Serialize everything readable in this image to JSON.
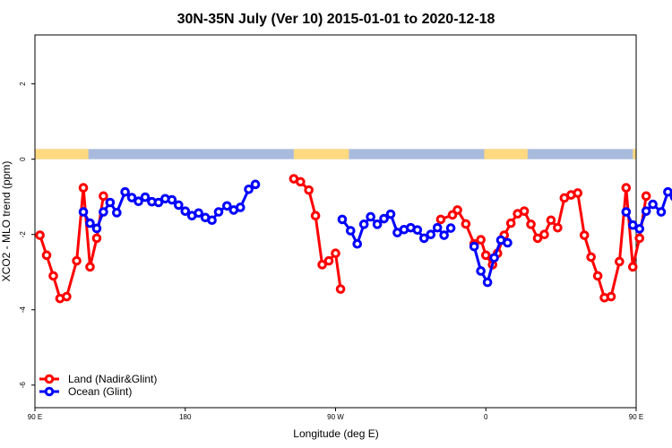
{
  "chart_data": {
    "type": "line",
    "title": "30N-35N July (Ver 10)   2015-01-01 to 2020-12-18",
    "xlabel": "Longitude (deg E)",
    "ylabel": "XCO2 - MLO trend (ppm)",
    "xlim": [
      90,
      450
    ],
    "ylim": [
      -6.6,
      3.3
    ],
    "x_ticks": [
      {
        "value": 90,
        "label": "90 E"
      },
      {
        "value": 180,
        "label": "180"
      },
      {
        "value": 270,
        "label": "90 W"
      },
      {
        "value": 360,
        "label": "0"
      },
      {
        "value": 450,
        "label": "90 E"
      },
      {
        "value": 540,
        "label": "180"
      }
    ],
    "y_ticks": [
      {
        "value": 2,
        "label": "2"
      },
      {
        "value": 0,
        "label": "0"
      },
      {
        "value": -2,
        "label": "-2"
      },
      {
        "value": -4,
        "label": "-4"
      },
      {
        "value": -6,
        "label": "-6"
      }
    ],
    "legend_position": "bottom-left",
    "mask_band": {
      "y_range": [
        0,
        0.27
      ],
      "land_color": "#FFD980",
      "ocean_color": "#A9BBDD",
      "land_segments": [
        [
          90,
          122
        ],
        [
          245,
          278
        ],
        [
          359,
          385
        ],
        [
          448,
          481
        ],
        [
          524,
          540
        ]
      ]
    },
    "series": [
      {
        "name": "Land (Nadir&Glint)",
        "color": "#FF0000",
        "segments": [
          [
            [
              93,
              -2.02
            ],
            [
              97,
              -2.55
            ],
            [
              101,
              -3.1
            ],
            [
              105,
              -3.7
            ],
            [
              109,
              -3.65
            ],
            [
              115,
              -2.7
            ],
            [
              119,
              -0.76
            ],
            [
              123,
              -2.86
            ],
            [
              127,
              -2.1
            ],
            [
              131,
              -0.98
            ]
          ],
          [
            [
              245,
              -0.52
            ],
            [
              249,
              -0.6
            ],
            [
              254,
              -0.82
            ],
            [
              258,
              -1.5
            ],
            [
              262,
              -2.8
            ],
            [
              266,
              -2.7
            ],
            [
              270,
              -2.5
            ],
            [
              273,
              -3.45
            ]
          ],
          [
            [
              333,
              -1.6
            ],
            [
              340,
              -1.48
            ],
            [
              343,
              -1.35
            ],
            [
              348,
              -1.72
            ],
            [
              353,
              -2.25
            ],
            [
              357,
              -2.14
            ],
            [
              360,
              -2.55
            ],
            [
              364,
              -2.8
            ],
            [
              367,
              -2.5
            ],
            [
              371,
              -2.02
            ],
            [
              375,
              -1.7
            ],
            [
              379,
              -1.45
            ],
            [
              383,
              -1.38
            ],
            [
              387,
              -1.73
            ],
            [
              391,
              -2.1
            ],
            [
              395,
              -2.0
            ],
            [
              399,
              -1.62
            ],
            [
              403,
              -1.82
            ],
            [
              407,
              -1.03
            ],
            [
              411,
              -0.95
            ],
            [
              415,
              -0.9
            ],
            [
              419,
              -2.02
            ],
            [
              423,
              -2.6
            ],
            [
              427,
              -3.1
            ],
            [
              431,
              -3.68
            ],
            [
              435,
              -3.65
            ],
            [
              440,
              -2.72
            ],
            [
              444,
              -0.76
            ],
            [
              448,
              -2.86
            ],
            [
              452,
              -2.1
            ],
            [
              456,
              -0.98
            ]
          ]
        ]
      },
      {
        "name": "Ocean (Glint)",
        "color": "#0000FF",
        "segments": [
          [
            [
              119,
              -1.4
            ],
            [
              123,
              -1.7
            ],
            [
              127,
              -1.84
            ],
            [
              131,
              -1.4
            ],
            [
              135,
              -1.15
            ],
            [
              139,
              -1.42
            ],
            [
              144,
              -0.87
            ],
            [
              148,
              -1.02
            ],
            [
              152,
              -1.12
            ],
            [
              156,
              -1.01
            ],
            [
              160,
              -1.13
            ],
            [
              164,
              -1.15
            ],
            [
              168,
              -1.05
            ],
            [
              172,
              -1.08
            ],
            [
              176,
              -1.22
            ],
            [
              180,
              -1.38
            ],
            [
              184,
              -1.5
            ],
            [
              188,
              -1.43
            ],
            [
              192,
              -1.55
            ],
            [
              196,
              -1.62
            ],
            [
              200,
              -1.4
            ],
            [
              205,
              -1.24
            ],
            [
              209,
              -1.35
            ],
            [
              213,
              -1.28
            ],
            [
              218,
              -0.8
            ],
            [
              222,
              -0.67
            ]
          ],
          [
            [
              274,
              -1.6
            ],
            [
              279,
              -1.9
            ],
            [
              283,
              -2.25
            ],
            [
              287,
              -1.73
            ],
            [
              291,
              -1.53
            ],
            [
              295,
              -1.73
            ],
            [
              299,
              -1.58
            ],
            [
              303,
              -1.46
            ],
            [
              307,
              -1.95
            ],
            [
              311,
              -1.87
            ],
            [
              315,
              -1.82
            ],
            [
              319,
              -1.88
            ],
            [
              323,
              -2.1
            ],
            [
              327,
              -2.0
            ],
            [
              331,
              -1.82
            ],
            [
              335,
              -2.02
            ],
            [
              339,
              -1.83
            ]
          ],
          [
            [
              353,
              -2.32
            ],
            [
              357,
              -2.97
            ],
            [
              361,
              -3.27
            ],
            [
              365,
              -2.62
            ],
            [
              369,
              -2.15
            ],
            [
              373,
              -2.22
            ]
          ],
          [
            [
              444,
              -1.4
            ],
            [
              448,
              -1.75
            ],
            [
              452,
              -1.85
            ],
            [
              456,
              -1.38
            ],
            [
              460,
              -1.2
            ],
            [
              465,
              -1.4
            ],
            [
              469,
              -0.87
            ],
            [
              473,
              -1.0
            ],
            [
              477,
              -1.12
            ],
            [
              481,
              -1.0
            ],
            [
              485,
              -1.13
            ],
            [
              489,
              -1.18
            ]
          ]
        ]
      }
    ]
  }
}
